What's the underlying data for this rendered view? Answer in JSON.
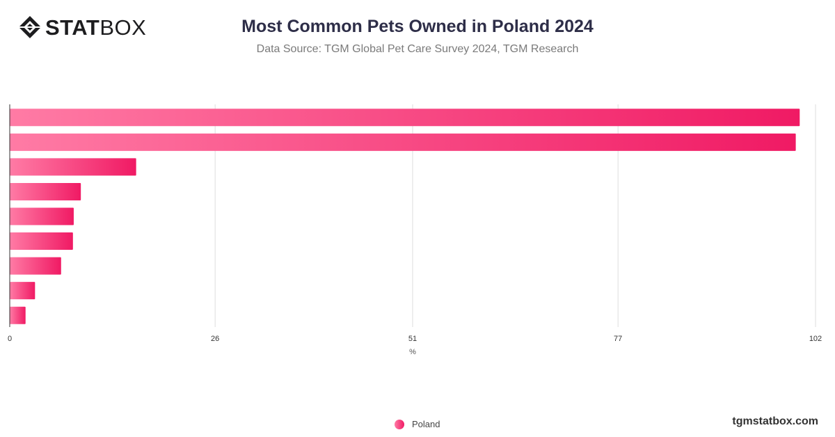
{
  "header": {
    "logo_bold": "STAT",
    "logo_light": "BOX",
    "title": "Most Common Pets Owned in Poland 2024",
    "subtitle": "Data Source: TGM Global Pet Care Survey 2024, TGM Research"
  },
  "footer": {
    "brand": "tgmstatbox.com"
  },
  "colors": {
    "bar_start": "#ff7ba5",
    "bar_end": "#f01a64",
    "grid": "#dddddd",
    "axis": "#333333"
  },
  "chart_data": {
    "type": "bar",
    "orientation": "horizontal",
    "categories": [
      "",
      "",
      "",
      "",
      "",
      "",
      "",
      "",
      ""
    ],
    "series": [
      {
        "name": "Poland",
        "values": [
          100,
          99.5,
          16,
          9,
          8.1,
          8,
          6.5,
          3.2,
          2
        ]
      }
    ],
    "xlabel": "%",
    "ylabel": "",
    "xlim": [
      0,
      102
    ],
    "xticks": [
      "0",
      "26",
      "51",
      "77",
      "102"
    ],
    "grid": true,
    "legend": "bottom-center"
  }
}
